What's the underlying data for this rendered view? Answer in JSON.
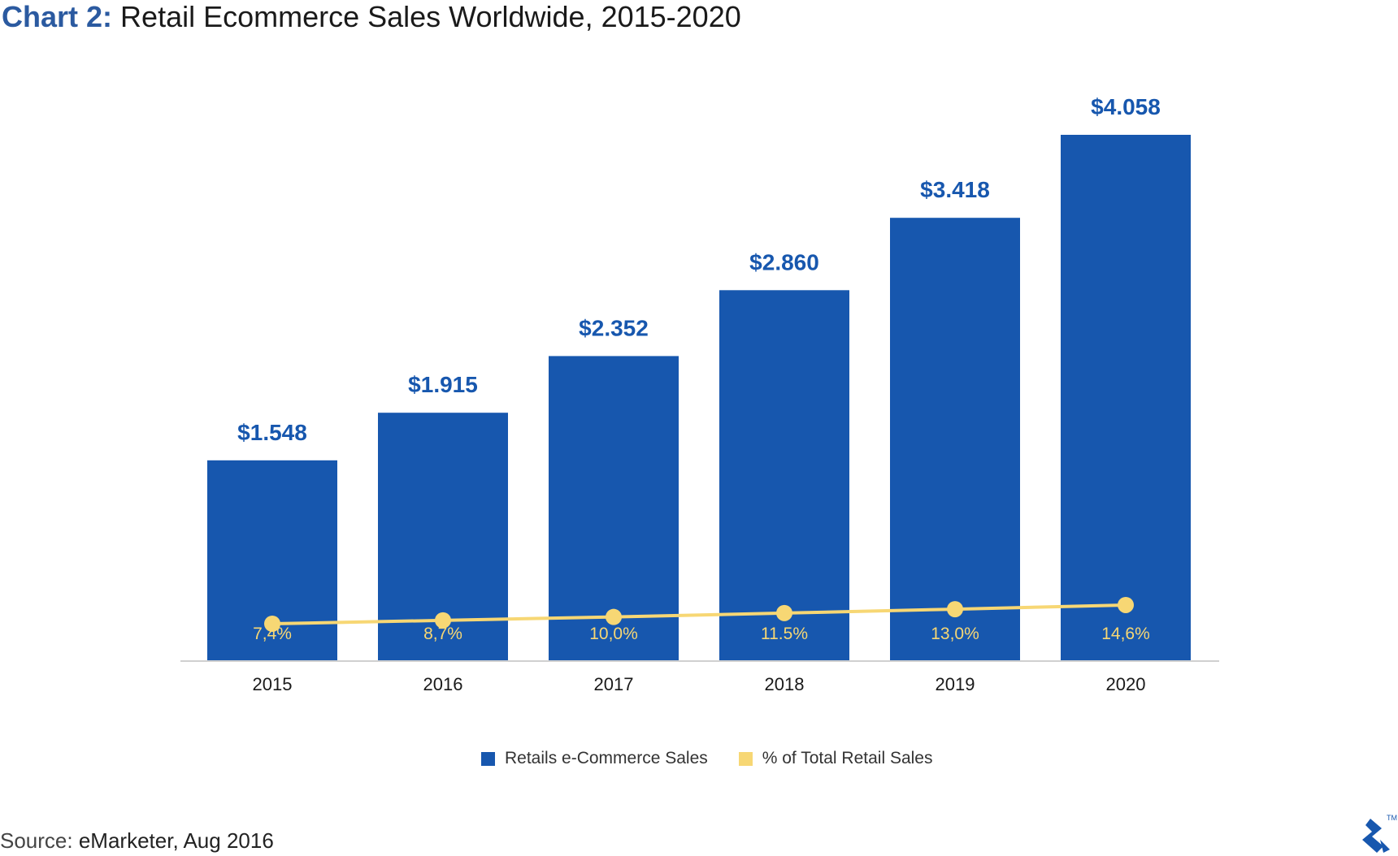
{
  "title_prefix": "Chart 2:",
  "title_main": "Retail Ecommerce Sales Worldwide, 2015-2020",
  "source_label": "Source:",
  "source_text": "eMarketer, Aug 2016",
  "colors": {
    "bar": "#1757ae",
    "line": "#f7d774",
    "value_label": "#1757ae",
    "title_prefix": "#2b5aa0"
  },
  "chart_data": {
    "type": "bar",
    "categories": [
      "2015",
      "2016",
      "2017",
      "2018",
      "2019",
      "2020"
    ],
    "series": [
      {
        "name": "Retails e-Commerce Sales",
        "type": "bar",
        "values": [
          1.548,
          1.915,
          2.352,
          2.86,
          3.418,
          4.058
        ],
        "labels": [
          "$1.548",
          "$1.915",
          "$2.352",
          "$2.860",
          "$3.418",
          "$4.058"
        ]
      },
      {
        "name": "% of Total Retail Sales",
        "type": "line",
        "values": [
          7.4,
          8.7,
          10.0,
          11.5,
          13.0,
          14.6
        ],
        "labels": [
          "7,4%",
          "8,7%",
          "10,0%",
          "11.5%",
          "13,0%",
          "14,6%"
        ]
      }
    ],
    "legend": [
      "Retails e-Commerce Sales",
      "% of Total Retail Sales"
    ],
    "legend_position": "bottom-center",
    "grid": false
  }
}
